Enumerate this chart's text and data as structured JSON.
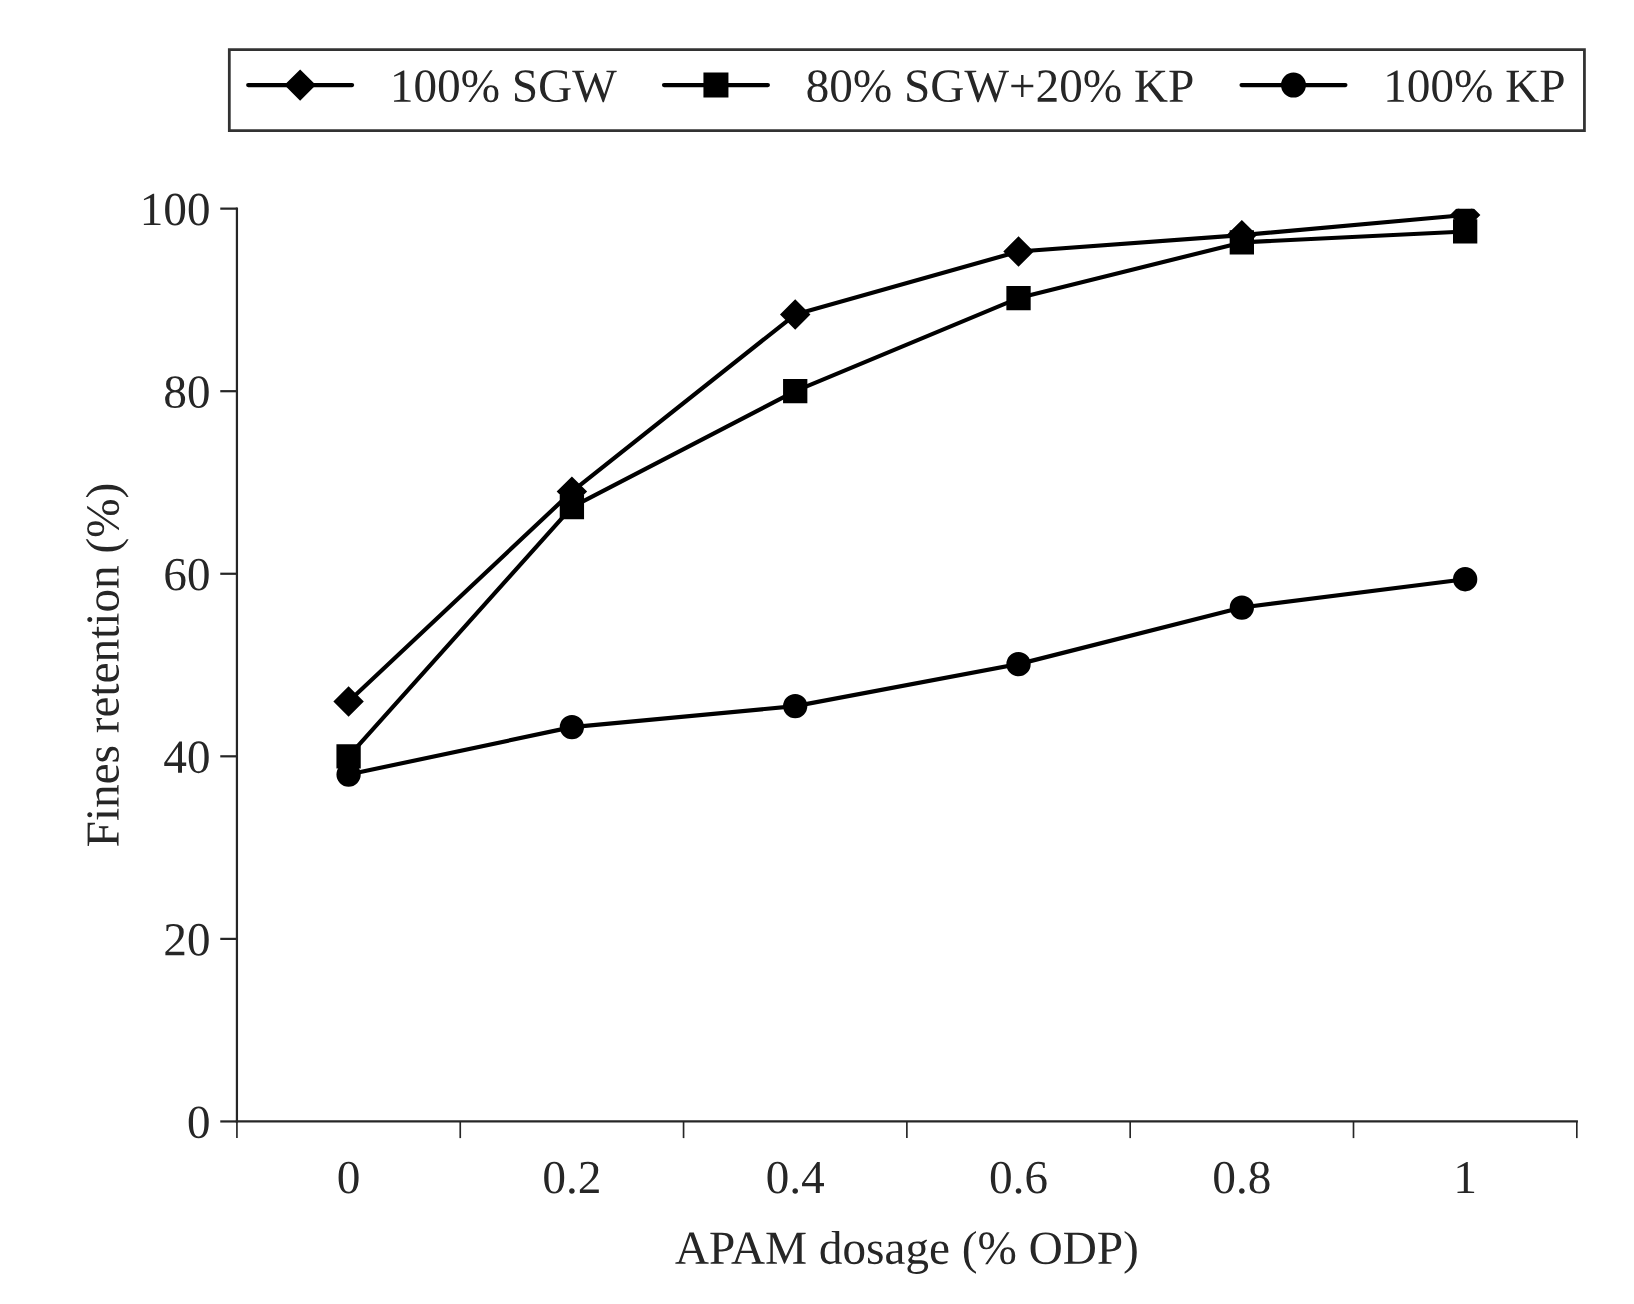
{
  "chart_data": {
    "type": "line",
    "xlabel": "APAM dosage (% ODP)",
    "ylabel": "Fines retention (%)",
    "categories": [
      "0",
      "0.2",
      "0.4",
      "0.6",
      "0.8",
      "1"
    ],
    "series": [
      {
        "name": "100% SGW",
        "color": "#000000",
        "marker": "diamond",
        "values": [
          46,
          69,
          88.4,
          95.3,
          97.1,
          99.3
        ]
      },
      {
        "name": "80% SGW+20% KP",
        "color": "#000000",
        "marker": "square",
        "values": [
          40,
          67.3,
          80,
          90.2,
          96.3,
          97.5
        ]
      },
      {
        "name": "100% KP",
        "color": "#000000",
        "marker": "circle",
        "values": [
          38,
          43.2,
          45.5,
          50.1,
          56.3,
          59.4
        ]
      }
    ],
    "ylim": [
      0,
      100
    ],
    "yticks": [
      0,
      20,
      40,
      60,
      80,
      100
    ],
    "grid": false,
    "legend": "top",
    "line_style": "solid"
  }
}
